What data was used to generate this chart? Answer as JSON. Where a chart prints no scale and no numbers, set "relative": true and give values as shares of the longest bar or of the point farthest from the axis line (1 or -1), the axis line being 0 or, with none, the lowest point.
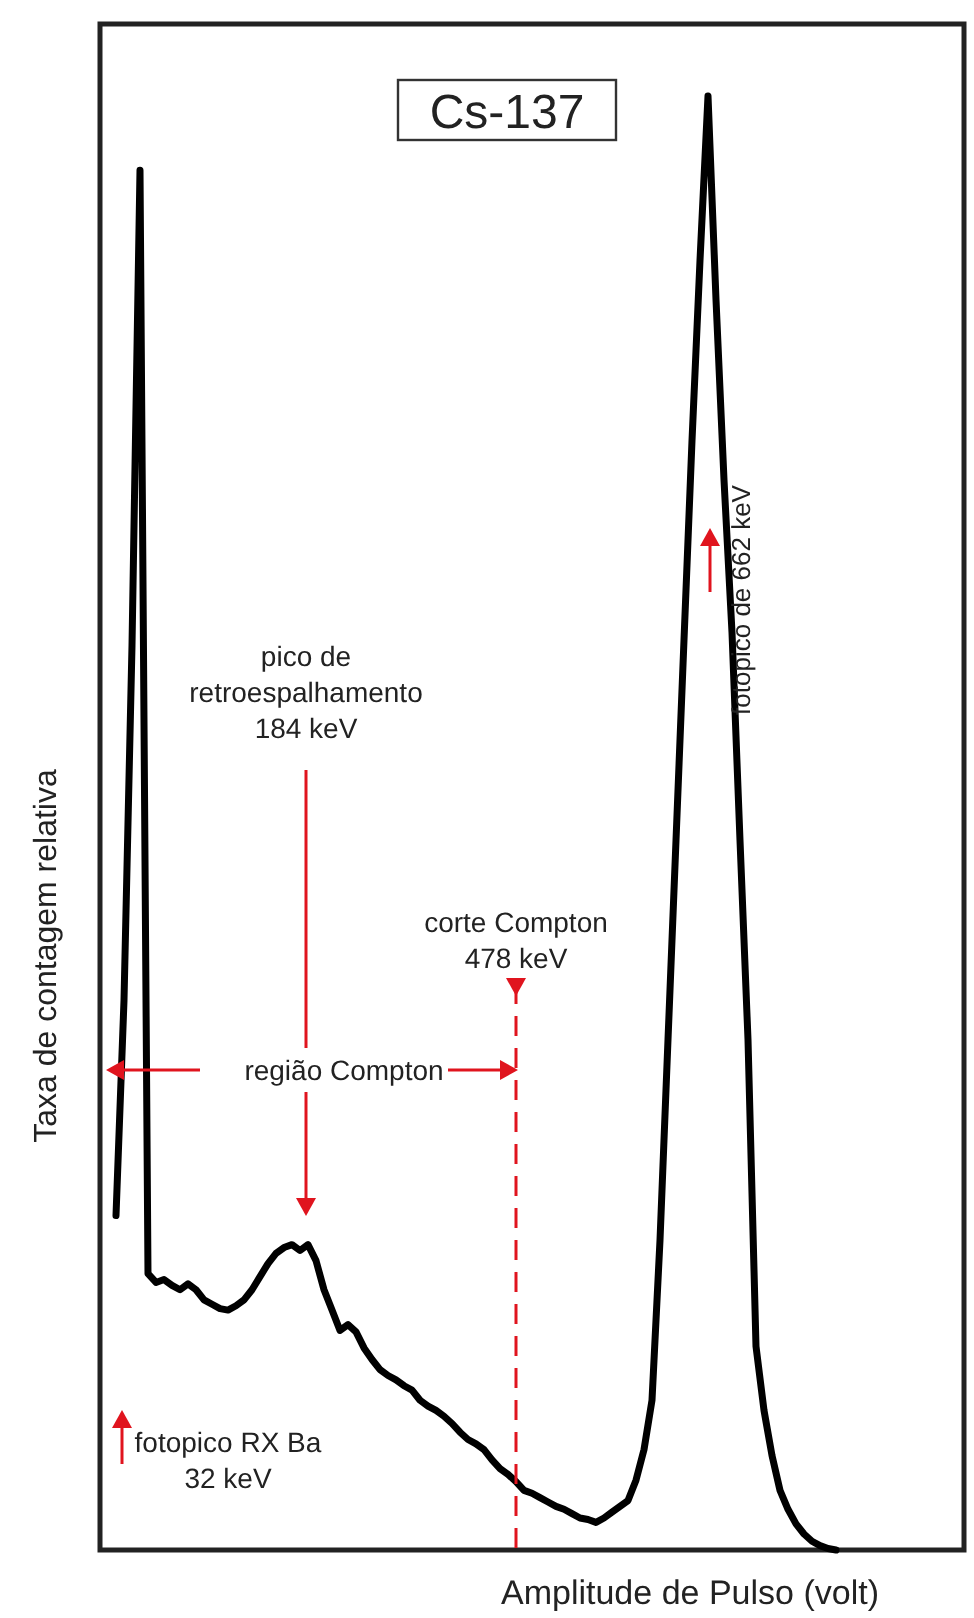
{
  "chart_data": {
    "type": "line",
    "relative": true,
    "title": "Cs-137",
    "xlabel": "Amplitude de Pulso (volt)",
    "ylabel": "Taxa de contagem relativa",
    "categories": [
      null,
      null,
      null,
      null,
      null,
      null,
      null,
      null,
      null,
      null,
      null,
      null,
      null,
      null,
      null,
      null,
      null,
      null,
      null,
      null,
      null,
      null,
      null,
      null,
      null,
      null,
      null,
      null,
      null,
      null,
      null,
      null,
      null,
      null,
      null,
      null,
      null,
      null,
      null,
      null,
      null,
      null,
      null,
      null,
      null,
      null,
      null,
      null,
      null,
      null,
      null,
      null,
      null,
      null,
      null,
      null,
      null,
      null,
      null,
      null,
      null,
      null,
      null,
      null,
      null,
      null,
      null,
      null,
      null,
      null,
      null,
      null,
      null,
      null,
      null,
      null,
      null,
      null,
      null,
      null,
      null,
      null,
      null,
      null,
      null,
      null,
      null,
      null,
      null,
      null,
      null
    ],
    "series": [
      {
        "color": "#000000",
        "values": [
          0.23,
          0.378,
          0.622,
          0.949,
          0.19,
          0.184,
          0.186,
          0.182,
          0.179,
          0.183,
          0.179,
          0.172,
          0.169,
          0.166,
          0.165,
          0.168,
          0.172,
          0.179,
          0.188,
          0.197,
          0.204,
          0.208,
          0.21,
          0.206,
          0.21,
          0.199,
          0.179,
          0.165,
          0.151,
          0.155,
          0.15,
          0.139,
          0.131,
          0.124,
          0.12,
          0.117,
          0.113,
          0.11,
          0.103,
          0.099,
          0.096,
          0.092,
          0.087,
          0.081,
          0.076,
          0.073,
          0.069,
          0.062,
          0.056,
          0.052,
          0.047,
          0.041,
          0.039,
          0.036,
          0.033,
          0.03,
          0.028,
          0.025,
          0.022,
          0.021,
          0.019,
          0.022,
          0.026,
          0.03,
          0.034,
          0.048,
          0.069,
          0.103,
          0.213,
          0.351,
          0.488,
          0.626,
          0.763,
          0.887,
          1,
          0.86,
          0.736,
          0.631,
          0.488,
          0.351,
          0.14,
          0.096,
          0.065,
          0.041,
          0.028,
          0.018,
          0.011,
          0.006,
          0.003,
          0.001,
          0
        ]
      }
    ],
    "annotations": [
      "pico de\nretroespalhamento\n184 keV",
      "corte Compton\n478 keV",
      "região Compton",
      "fotopico de 662 keV",
      "fotopico RX Ba\n32 keV"
    ]
  }
}
